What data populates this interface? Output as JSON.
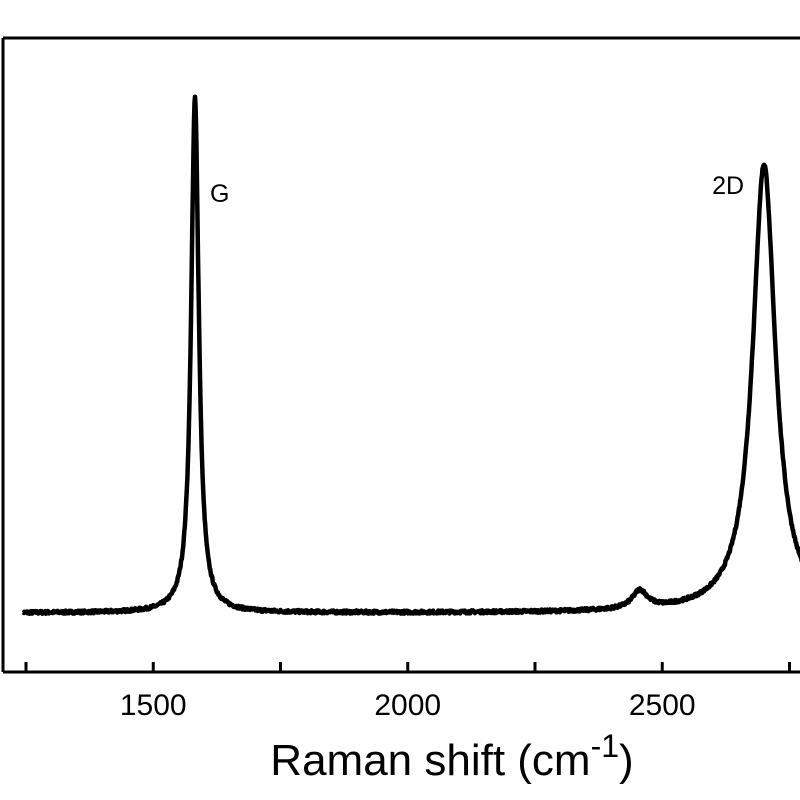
{
  "chart_data": {
    "type": "line",
    "title": "",
    "xlabel": "Raman shift (cm",
    "xlabel_sup": "-1",
    "xlabel_close": ")",
    "ylabel": "",
    "xlim": [
      1240,
      2790
    ],
    "ylim": [
      0,
      1.2
    ],
    "x_major_ticks": [
      1500,
      2000,
      2500
    ],
    "x_minor_ticks": [
      1250,
      1750,
      2250,
      2750
    ],
    "x_tick_labels": [
      "1500",
      "2000",
      "2500"
    ],
    "grid": false,
    "legend": "none",
    "annotations": [
      {
        "text": "G",
        "x": 1582,
        "y": 1.0
      },
      {
        "text": "2D",
        "x": 2700,
        "y": 0.87
      }
    ],
    "series": [
      {
        "baseline": 0.015,
        "peaks": [
          {
            "center": 1582,
            "height": 1.0,
            "width": 9
          },
          {
            "center": 2456,
            "height": 0.035,
            "width": 18
          },
          {
            "center": 2700,
            "height": 0.87,
            "width": 27
          }
        ],
        "color": "#000000"
      }
    ]
  }
}
